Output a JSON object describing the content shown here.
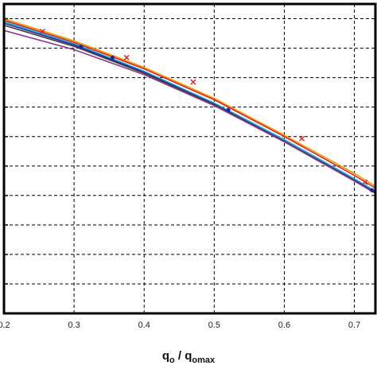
{
  "chart_data": {
    "type": "line",
    "title": "",
    "xlabel": {
      "main": "q",
      "main_sub": "o",
      "sep": " / ",
      "denom": "q",
      "denom_sub": "omax"
    },
    "ylabel": "",
    "xlim": [
      0.2,
      0.73
    ],
    "ylim": [
      0.0,
      1.05
    ],
    "x_ticks": [
      "0.2",
      "0.3",
      "0.4",
      "0.5",
      "0.6",
      "0.7"
    ],
    "x_tick_values": [
      0.2,
      0.3,
      0.4,
      0.5,
      0.6,
      0.7
    ],
    "y_gridlines": [
      0.1,
      0.2,
      0.3,
      0.4,
      0.5,
      0.6,
      0.7,
      0.8,
      0.9,
      1.0
    ],
    "grid": true,
    "grid_style": "dashed",
    "series": [
      {
        "color": "#e8a000",
        "x": [
          0.2,
          0.3,
          0.4,
          0.5,
          0.6,
          0.7,
          0.73
        ],
        "y": [
          1.0,
          0.925,
          0.835,
          0.73,
          0.605,
          0.475,
          0.432
        ]
      },
      {
        "color": "#e02020",
        "x": [
          0.2,
          0.3,
          0.4,
          0.5,
          0.6,
          0.7,
          0.73
        ],
        "y": [
          0.995,
          0.92,
          0.83,
          0.725,
          0.6,
          0.468,
          0.425
        ],
        "markers": {
          "shape": "x",
          "x": [
            0.255,
            0.375,
            0.47,
            0.625,
            0.715
          ],
          "y": [
            0.957,
            0.868,
            0.785,
            0.593,
            0.445
          ]
        }
      },
      {
        "color": "#20b0e0",
        "x": [
          0.2,
          0.3,
          0.4,
          0.5,
          0.6,
          0.7,
          0.73
        ],
        "y": [
          0.99,
          0.915,
          0.822,
          0.714,
          0.59,
          0.457,
          0.415
        ]
      },
      {
        "color": "#1a2a9a",
        "x": [
          0.2,
          0.3,
          0.4,
          0.5,
          0.6,
          0.7,
          0.73
        ],
        "y": [
          0.985,
          0.911,
          0.818,
          0.71,
          0.585,
          0.452,
          0.41
        ],
        "markers": {
          "shape": "dot",
          "x": [
            0.31,
            0.355,
            0.52,
            0.725
          ],
          "y": [
            0.905,
            0.868,
            0.69,
            0.418
          ]
        }
      },
      {
        "color": "#404040",
        "x": [
          0.2,
          0.3,
          0.4,
          0.5,
          0.6,
          0.7,
          0.73
        ],
        "y": [
          0.978,
          0.906,
          0.815,
          0.708,
          0.583,
          0.45,
          0.408
        ]
      },
      {
        "color": "#8a3a8a",
        "x": [
          0.2,
          0.3,
          0.4,
          0.5,
          0.6,
          0.7,
          0.73
        ],
        "y": [
          0.96,
          0.895,
          0.81,
          0.705,
          0.582,
          0.449,
          0.407
        ]
      }
    ]
  }
}
